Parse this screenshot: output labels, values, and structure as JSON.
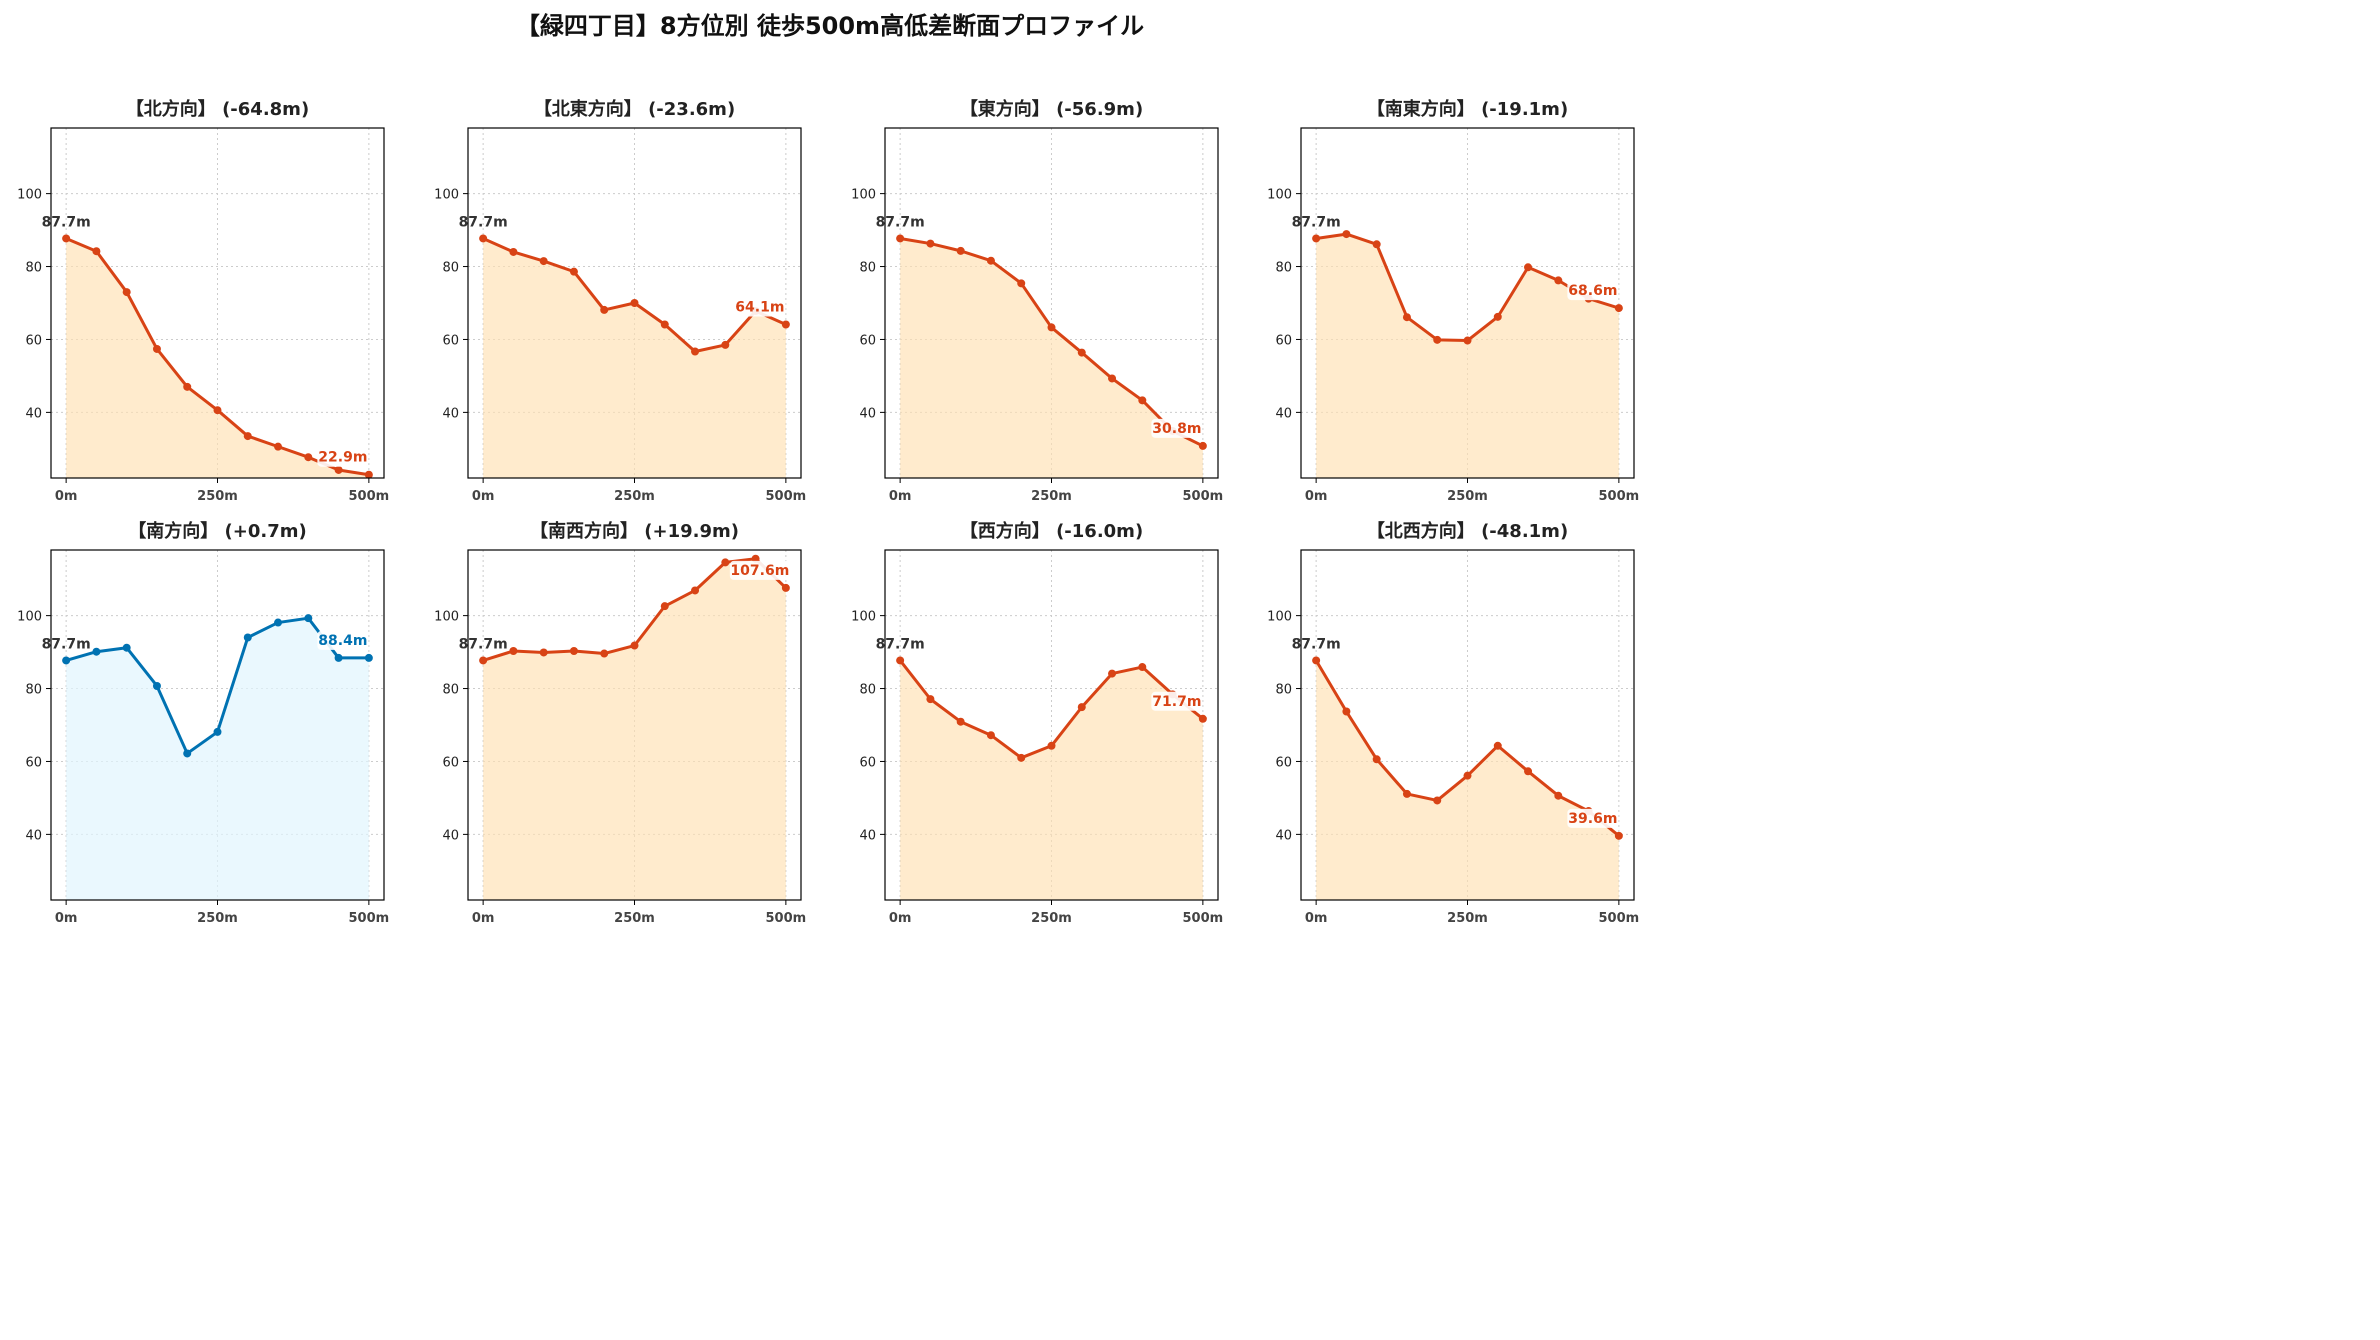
{
  "title": "【緑四丁目】8方位別 徒歩500m高低差断面プロファイル",
  "colors": {
    "down_line": "#d84315",
    "down_fill": "#ffe0b2",
    "up_line": "#0072b2",
    "up_fill": "#e1f5fe",
    "start_label": "#333333",
    "grid": "#cccccc"
  },
  "chart_data": [
    {
      "type": "area",
      "title": "【北方向】 (-64.8m)",
      "color": "down",
      "x": [
        0,
        50,
        100,
        150,
        200,
        250,
        300,
        350,
        400,
        450,
        500
      ],
      "y": [
        87.7,
        84.2,
        73.0,
        57.4,
        47.0,
        40.6,
        33.5,
        30.6,
        27.7,
        24.2,
        22.9
      ],
      "start_label": "87.7m",
      "end_label": "22.9m",
      "xticks": [
        "0m",
        "250m",
        "500m"
      ],
      "yticks": [
        "40",
        "60",
        "80",
        "100"
      ],
      "ylim": [
        22,
        118
      ],
      "xlim": [
        -25,
        525
      ],
      "grid": true
    },
    {
      "type": "area",
      "title": "【北東方向】 (-23.6m)",
      "color": "down",
      "x": [
        0,
        50,
        100,
        150,
        200,
        250,
        300,
        350,
        400,
        450,
        500
      ],
      "y": [
        87.7,
        84.0,
        81.5,
        78.6,
        68.1,
        70.0,
        64.1,
        56.7,
        58.5,
        67.8,
        64.1
      ],
      "start_label": "87.7m",
      "end_label": "64.1m",
      "xticks": [
        "0m",
        "250m",
        "500m"
      ],
      "yticks": [
        "40",
        "60",
        "80",
        "100"
      ],
      "ylim": [
        22,
        118
      ],
      "xlim": [
        -25,
        525
      ],
      "grid": true
    },
    {
      "type": "area",
      "title": "【東方向】 (-56.9m)",
      "color": "down",
      "x": [
        0,
        50,
        100,
        150,
        200,
        250,
        300,
        350,
        400,
        450,
        500
      ],
      "y": [
        87.7,
        86.3,
        84.3,
        81.6,
        75.4,
        63.3,
        56.4,
        49.3,
        43.3,
        34.9,
        30.8
      ],
      "start_label": "87.7m",
      "end_label": "30.8m",
      "xticks": [
        "0m",
        "250m",
        "500m"
      ],
      "yticks": [
        "40",
        "60",
        "80",
        "100"
      ],
      "ylim": [
        22,
        118
      ],
      "xlim": [
        -25,
        525
      ],
      "grid": true
    },
    {
      "type": "area",
      "title": "【南東方向】 (-19.1m)",
      "color": "down",
      "x": [
        0,
        50,
        100,
        150,
        200,
        250,
        300,
        350,
        400,
        450,
        500
      ],
      "y": [
        87.7,
        88.9,
        86.1,
        66.1,
        59.9,
        59.7,
        66.2,
        79.8,
        76.2,
        71.2,
        68.6
      ],
      "start_label": "87.7m",
      "end_label": "68.6m",
      "xticks": [
        "0m",
        "250m",
        "500m"
      ],
      "yticks": [
        "40",
        "60",
        "80",
        "100"
      ],
      "ylim": [
        22,
        118
      ],
      "xlim": [
        -25,
        525
      ],
      "grid": true
    },
    {
      "type": "area",
      "title": "【南方向】 (+0.7m)",
      "color": "up",
      "x": [
        0,
        50,
        100,
        150,
        200,
        250,
        300,
        350,
        400,
        450,
        500
      ],
      "y": [
        87.7,
        90.1,
        91.2,
        80.7,
        62.2,
        68.1,
        94.0,
        98.1,
        99.3,
        88.4,
        88.4
      ],
      "start_label": "87.7m",
      "end_label": "88.4m",
      "xticks": [
        "0m",
        "250m",
        "500m"
      ],
      "yticks": [
        "40",
        "60",
        "80",
        "100"
      ],
      "ylim": [
        22,
        118
      ],
      "xlim": [
        -25,
        525
      ],
      "grid": true
    },
    {
      "type": "area",
      "title": "【南西方向】 (+19.9m)",
      "color": "down",
      "x": [
        0,
        50,
        100,
        150,
        200,
        250,
        300,
        350,
        400,
        450,
        500
      ],
      "y": [
        87.7,
        90.3,
        89.9,
        90.3,
        89.6,
        91.8,
        102.6,
        106.9,
        114.6,
        115.6,
        107.6
      ],
      "start_label": "87.7m",
      "end_label": "107.6m",
      "xticks": [
        "0m",
        "250m",
        "500m"
      ],
      "yticks": [
        "40",
        "60",
        "80",
        "100"
      ],
      "ylim": [
        22,
        118
      ],
      "xlim": [
        -25,
        525
      ],
      "grid": true
    },
    {
      "type": "area",
      "title": "【西方向】 (-16.0m)",
      "color": "down",
      "x": [
        0,
        50,
        100,
        150,
        200,
        250,
        300,
        350,
        400,
        450,
        500
      ],
      "y": [
        87.7,
        77.1,
        70.9,
        67.2,
        61.0,
        64.3,
        74.9,
        84.1,
        85.9,
        78.4,
        71.7
      ],
      "start_label": "87.7m",
      "end_label": "71.7m",
      "xticks": [
        "0m",
        "250m",
        "500m"
      ],
      "yticks": [
        "40",
        "60",
        "80",
        "100"
      ],
      "ylim": [
        22,
        118
      ],
      "xlim": [
        -25,
        525
      ],
      "grid": true
    },
    {
      "type": "area",
      "title": "【北西方向】 (-48.1m)",
      "color": "down",
      "x": [
        0,
        50,
        100,
        150,
        200,
        250,
        300,
        350,
        400,
        450,
        500
      ],
      "y": [
        87.7,
        73.7,
        60.6,
        51.1,
        49.3,
        56.1,
        64.3,
        57.3,
        50.6,
        46.4,
        39.6
      ],
      "start_label": "87.7m",
      "end_label": "39.6m",
      "xticks": [
        "0m",
        "250m",
        "500m"
      ],
      "yticks": [
        "40",
        "60",
        "80",
        "100"
      ],
      "ylim": [
        22,
        118
      ],
      "xlim": [
        -25,
        525
      ],
      "grid": true
    }
  ]
}
